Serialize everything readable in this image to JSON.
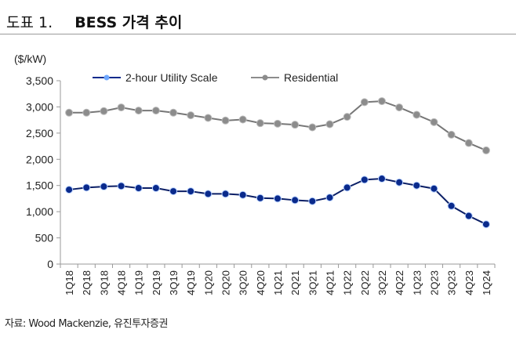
{
  "header": {
    "number": "도표 1.",
    "title": "BESS 가격 추이"
  },
  "source": "자료: Wood Mackenzie, 유진투자증권",
  "chart_data": {
    "type": "line",
    "title": "BESS 가격 추이",
    "ylabel": "($/kW)",
    "xlabel": "",
    "ylim": [
      0,
      3500
    ],
    "yticks": [
      0,
      500,
      1000,
      1500,
      2000,
      2500,
      3000,
      3500
    ],
    "ytick_labels": [
      "0",
      "500",
      "1,000",
      "1,500",
      "2,000",
      "2,500",
      "3,000",
      "3,500"
    ],
    "legend_position": "top",
    "grid": false,
    "categories": [
      "1Q18",
      "2Q18",
      "3Q18",
      "4Q18",
      "1Q19",
      "2Q19",
      "3Q19",
      "4Q19",
      "1Q20",
      "2Q20",
      "3Q20",
      "4Q20",
      "1Q21",
      "2Q21",
      "3Q21",
      "4Q21",
      "1Q22",
      "2Q22",
      "3Q22",
      "4Q22",
      "1Q23",
      "2Q23",
      "3Q23",
      "4Q23",
      "1Q24"
    ],
    "series": [
      {
        "name": "2-hour Utility Scale",
        "color": "#0a2a8c",
        "values": [
          1420,
          1460,
          1480,
          1490,
          1450,
          1450,
          1390,
          1390,
          1340,
          1340,
          1320,
          1260,
          1250,
          1220,
          1200,
          1270,
          1460,
          1610,
          1630,
          1560,
          1500,
          1440,
          1110,
          920,
          760
        ]
      },
      {
        "name": "Residential",
        "color": "#8c8c8c",
        "values": [
          2890,
          2890,
          2920,
          2990,
          2930,
          2930,
          2890,
          2840,
          2790,
          2740,
          2760,
          2690,
          2680,
          2660,
          2610,
          2670,
          2810,
          3090,
          3110,
          2990,
          2850,
          2710,
          2470,
          2310,
          2170
        ]
      }
    ]
  }
}
